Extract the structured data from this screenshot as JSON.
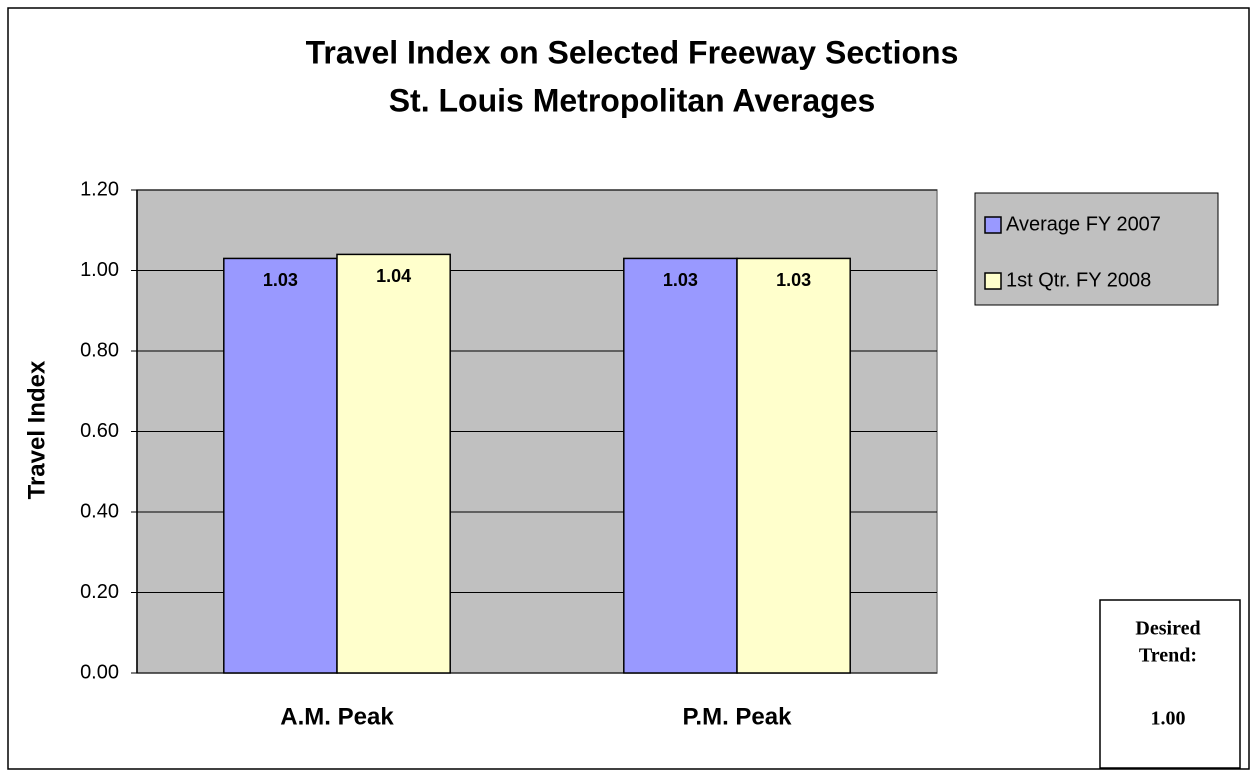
{
  "chart_data": {
    "type": "bar",
    "title": [
      "Travel Index on Selected Freeway Sections",
      "St. Louis Metropolitan Averages"
    ],
    "y_label": "Travel Index",
    "categories": [
      "A.M. Peak",
      "P.M. Peak"
    ],
    "series": [
      {
        "name": "Average FY 2007",
        "color": "#9999ff",
        "values": [
          1.03,
          1.03
        ]
      },
      {
        "name": "1st Qtr. FY 2008",
        "color": "#ffffcc",
        "values": [
          1.04,
          1.03
        ]
      }
    ],
    "ylim": [
      0,
      1.2
    ],
    "yticks": [
      {
        "value": 0,
        "label": "0.00"
      },
      {
        "value": 0.2,
        "label": "0.20"
      },
      {
        "value": 0.4,
        "label": "0.40"
      },
      {
        "value": 0.6,
        "label": "0.60"
      },
      {
        "value": 0.8,
        "label": "0.80"
      },
      {
        "value": 1,
        "label": "1.00"
      },
      {
        "value": 1.2,
        "label": "1.20"
      }
    ],
    "grid": true,
    "legend": "right",
    "plot_background": "#c0c0c0",
    "annotation": {
      "lines": [
        "Desired",
        "Trend:"
      ],
      "value": "1.00"
    }
  }
}
